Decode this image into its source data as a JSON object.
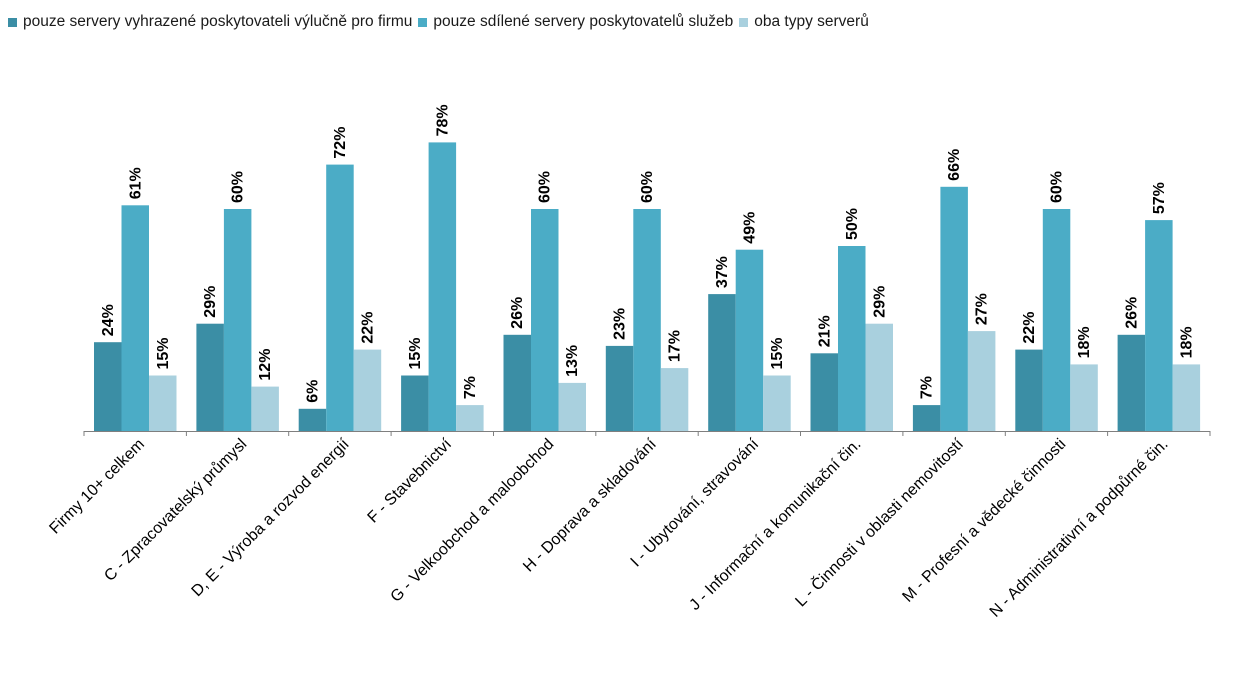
{
  "chart_data": {
    "type": "bar",
    "categories": [
      "Firmy 10+ celkem",
      "C - Zpracovatelský průmysl",
      "D, E - Výroba a rozvod energií",
      "F - Stavebnictví",
      "G - Velkoobchod a maloobchod",
      "H - Doprava a skladování",
      "I - Ubytování, stravování",
      "J - Informační a komunikační čin.",
      "L - Činnosti v oblasti nemovitostí",
      "M - Profesní a vědecké činnosti",
      "N - Administrativní a podpůrné čin."
    ],
    "series": [
      {
        "name": "pouze servery vyhrazené poskytovateli výlučně pro firmu",
        "color": "#3b8ea5",
        "values": [
          24,
          29,
          6,
          15,
          26,
          23,
          37,
          21,
          7,
          22,
          26
        ],
        "labels": [
          "24%",
          "29%",
          "6%",
          "15%",
          "26%",
          "23%",
          "37%",
          "21%",
          "7%",
          "22%",
          "26%"
        ]
      },
      {
        "name": "pouze sdílené servery poskytovatelů služeb",
        "color": "#4bacc6",
        "values": [
          61,
          60,
          72,
          78,
          60,
          60,
          49,
          50,
          66,
          60,
          57
        ],
        "labels": [
          "61%",
          "60%",
          "72%",
          "78%",
          "60%",
          "60%",
          "49%",
          "50%",
          "66%",
          "60%",
          "57%"
        ]
      },
      {
        "name": "oba typy serverů",
        "color": "#a9d0de",
        "values": [
          15,
          12,
          22,
          7,
          13,
          17,
          15,
          29,
          27,
          18,
          18
        ],
        "labels": [
          "15%",
          "12%",
          "22%",
          "7%",
          "13%",
          "17%",
          "15%",
          "29%",
          "27%",
          "18%",
          "18%"
        ]
      }
    ],
    "ylim": [
      0,
      80
    ],
    "grid": false,
    "legend": "top"
  }
}
